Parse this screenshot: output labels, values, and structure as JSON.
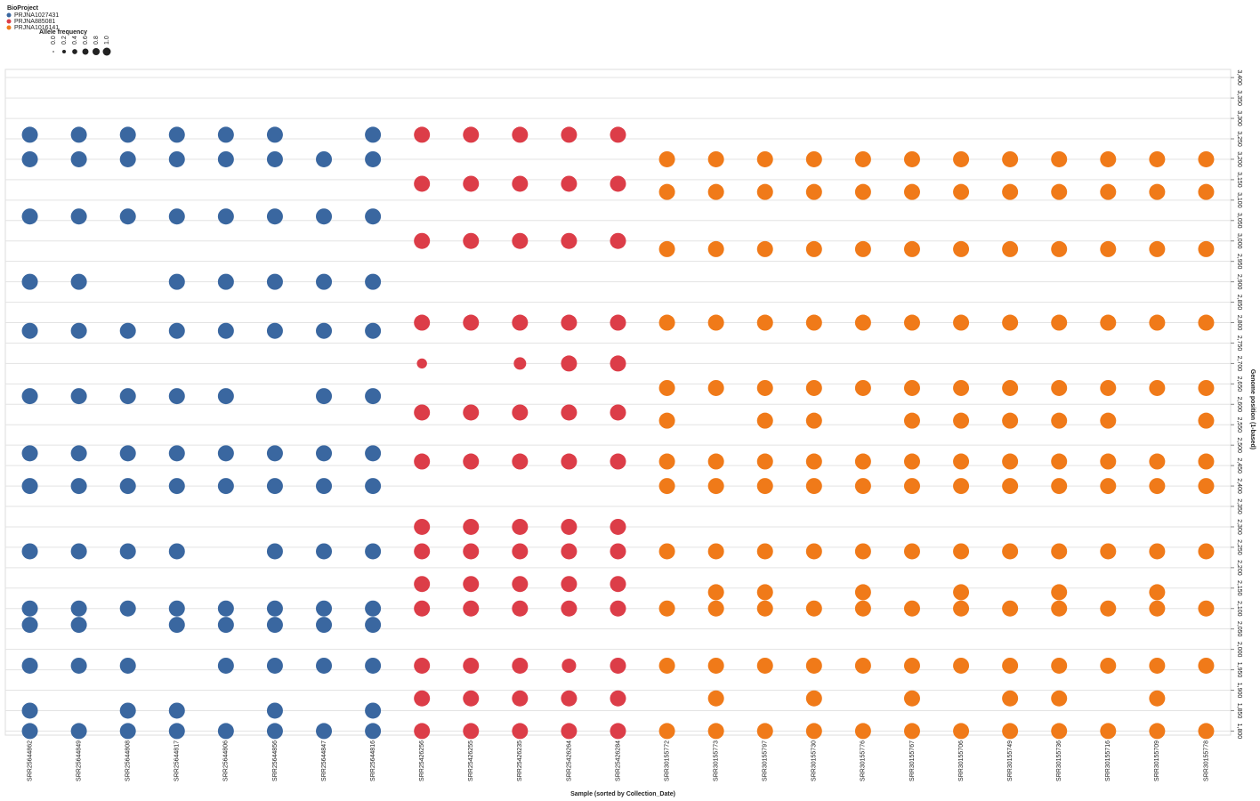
{
  "chart_data": {
    "type": "dotmatrix",
    "x_label": "Sample (sorted by Collection_Date)",
    "y_label": "Genome position (1-based)",
    "legend_title": "BioProject",
    "size_title": "Allele frequency",
    "sizes": [
      {
        "value": 0,
        "label": "0.0"
      },
      {
        "value": 0.2,
        "label": "0.2"
      },
      {
        "value": 0.4,
        "label": "0.4"
      },
      {
        "value": 0.6,
        "label": "0.6"
      },
      {
        "value": 0.8,
        "label": "0.8"
      },
      {
        "value": 1,
        "label": "1.0"
      }
    ],
    "ylim": [
      1790,
      3420
    ],
    "yticks": [
      {
        "value": 1800,
        "label": "1,800"
      },
      {
        "value": 1850,
        "label": "1,850"
      },
      {
        "value": 1900,
        "label": "1,900"
      },
      {
        "value": 1950,
        "label": "1,950"
      },
      {
        "value": 2000,
        "label": "2,000"
      },
      {
        "value": 2050,
        "label": "2,050"
      },
      {
        "value": 2100,
        "label": "2,100"
      },
      {
        "value": 2150,
        "label": "2,150"
      },
      {
        "value": 2200,
        "label": "2,200"
      },
      {
        "value": 2250,
        "label": "2,250"
      },
      {
        "value": 2300,
        "label": "2,300"
      },
      {
        "value": 2350,
        "label": "2,350"
      },
      {
        "value": 2400,
        "label": "2,400"
      },
      {
        "value": 2450,
        "label": "2,450"
      },
      {
        "value": 2500,
        "label": "2,500"
      },
      {
        "value": 2550,
        "label": "2,550"
      },
      {
        "value": 2600,
        "label": "2,600"
      },
      {
        "value": 2650,
        "label": "2,650"
      },
      {
        "value": 2700,
        "label": "2,700"
      },
      {
        "value": 2750,
        "label": "2,750"
      },
      {
        "value": 2800,
        "label": "2,800"
      },
      {
        "value": 2850,
        "label": "2,850"
      },
      {
        "value": 2900,
        "label": "2,900"
      },
      {
        "value": 2950,
        "label": "2,950"
      },
      {
        "value": 3000,
        "label": "3,000"
      },
      {
        "value": 3050,
        "label": "3,050"
      },
      {
        "value": 3100,
        "label": "3,100"
      },
      {
        "value": 3150,
        "label": "3,150"
      },
      {
        "value": 3200,
        "label": "3,200"
      },
      {
        "value": 3250,
        "label": "3,250"
      },
      {
        "value": 3300,
        "label": "3,300"
      },
      {
        "value": 3350,
        "label": "3,350"
      },
      {
        "value": 3400,
        "label": "3,400"
      }
    ],
    "grid": true,
    "series": [
      {
        "name": "PRJNA1027431",
        "color": "#3a67a0",
        "samples": [
          "SRR25644862",
          "SRR25644849",
          "SRR25644808",
          "SRR25644817",
          "SRR25644806",
          "SRR25644856",
          "SRR25644847",
          "SRR25644816"
        ],
        "positions": [
          1800,
          1850,
          1960,
          2060,
          2100,
          2240,
          2400,
          2480,
          2620,
          2780,
          2900,
          3060,
          3200,
          3260
        ],
        "values": [
          [
            1,
            1,
            1,
            1,
            1,
            1,
            1,
            1,
            1,
            1,
            1,
            1,
            1,
            1
          ],
          [
            1,
            null,
            1,
            1,
            1,
            1,
            1,
            1,
            1,
            1,
            1,
            1,
            1,
            1
          ],
          [
            1,
            1,
            1,
            null,
            1,
            1,
            1,
            1,
            1,
            1,
            null,
            1,
            1,
            1
          ],
          [
            1,
            1,
            null,
            1,
            1,
            1,
            1,
            1,
            1,
            1,
            1,
            1,
            1,
            1
          ],
          [
            1,
            null,
            1,
            1,
            1,
            null,
            1,
            1,
            1,
            1,
            1,
            1,
            1,
            1
          ],
          [
            1,
            1,
            1,
            1,
            1,
            1,
            1,
            1,
            null,
            1,
            1,
            1,
            1,
            1
          ],
          [
            1,
            null,
            1,
            1,
            1,
            1,
            1,
            1,
            1,
            1,
            1,
            1,
            1,
            null
          ],
          [
            1,
            1,
            1,
            1,
            1,
            1,
            1,
            1,
            1,
            1,
            1,
            1,
            1,
            1
          ]
        ]
      },
      {
        "name": "PRJNA885081",
        "color": "#dc3d48",
        "samples": [
          "SRR25426256",
          "SRR25426255",
          "SRR25426235",
          "SRR25426264",
          "SRR25426284"
        ],
        "positions": [
          1800,
          1880,
          1960,
          2100,
          2160,
          2240,
          2300,
          2460,
          2580,
          2700,
          2800,
          3000,
          3140,
          3260
        ],
        "values": [
          [
            1,
            1,
            1,
            1,
            1,
            1,
            1,
            1,
            1,
            0.4,
            1,
            1,
            1,
            1
          ],
          [
            1,
            1,
            1,
            1,
            1,
            1,
            1,
            1,
            1,
            null,
            1,
            1,
            1,
            1
          ],
          [
            1,
            1,
            1,
            1,
            1,
            1,
            1,
            1,
            1,
            0.6,
            1,
            1,
            1,
            1
          ],
          [
            1,
            1,
            0.8,
            1,
            1,
            1,
            1,
            1,
            1,
            1,
            1,
            1,
            1,
            1
          ],
          [
            1,
            1,
            1,
            1,
            1,
            1,
            1,
            1,
            1,
            1,
            1,
            1,
            1,
            1
          ]
        ]
      },
      {
        "name": "PRJNA1016141",
        "color": "#f07a19",
        "samples": [
          "SRR30155772",
          "SRR30155773",
          "SRR30155797",
          "SRR30155730",
          "SRR30155776",
          "SRR30155767",
          "SRR30155706",
          "SRR30155749",
          "SRR30155736",
          "SRR30155716",
          "SRR30155709",
          "SRR30155778"
        ],
        "positions": [
          1800,
          1880,
          1960,
          2100,
          2140,
          2240,
          2400,
          2460,
          2560,
          2640,
          2800,
          2980,
          3120,
          3200
        ],
        "values": [
          [
            1,
            null,
            1,
            1,
            null,
            1,
            1,
            1,
            1,
            1,
            1,
            1,
            1,
            1
          ],
          [
            1,
            1,
            1,
            1,
            1,
            1,
            1,
            1,
            null,
            1,
            1,
            1,
            1,
            1
          ],
          [
            1,
            null,
            1,
            1,
            1,
            1,
            1,
            1,
            1,
            1,
            1,
            1,
            1,
            1
          ],
          [
            1,
            1,
            1,
            1,
            null,
            1,
            1,
            1,
            1,
            1,
            1,
            1,
            1,
            1
          ],
          [
            1,
            null,
            1,
            1,
            1,
            1,
            1,
            1,
            null,
            1,
            1,
            1,
            1,
            1
          ],
          [
            1,
            1,
            1,
            1,
            null,
            1,
            1,
            1,
            1,
            1,
            1,
            1,
            1,
            1
          ],
          [
            1,
            null,
            1,
            1,
            1,
            1,
            1,
            1,
            1,
            1,
            1,
            1,
            1,
            1
          ],
          [
            1,
            1,
            1,
            1,
            null,
            1,
            1,
            1,
            1,
            1,
            1,
            1,
            1,
            1
          ],
          [
            1,
            1,
            1,
            1,
            1,
            1,
            1,
            1,
            1,
            1,
            1,
            1,
            1,
            1
          ],
          [
            1,
            null,
            1,
            1,
            null,
            1,
            1,
            1,
            1,
            1,
            1,
            1,
            1,
            1
          ],
          [
            1,
            1,
            1,
            1,
            1,
            1,
            1,
            1,
            null,
            1,
            1,
            1,
            1,
            1
          ],
          [
            1,
            null,
            1,
            1,
            null,
            1,
            1,
            1,
            1,
            1,
            1,
            1,
            1,
            1
          ]
        ]
      }
    ]
  }
}
